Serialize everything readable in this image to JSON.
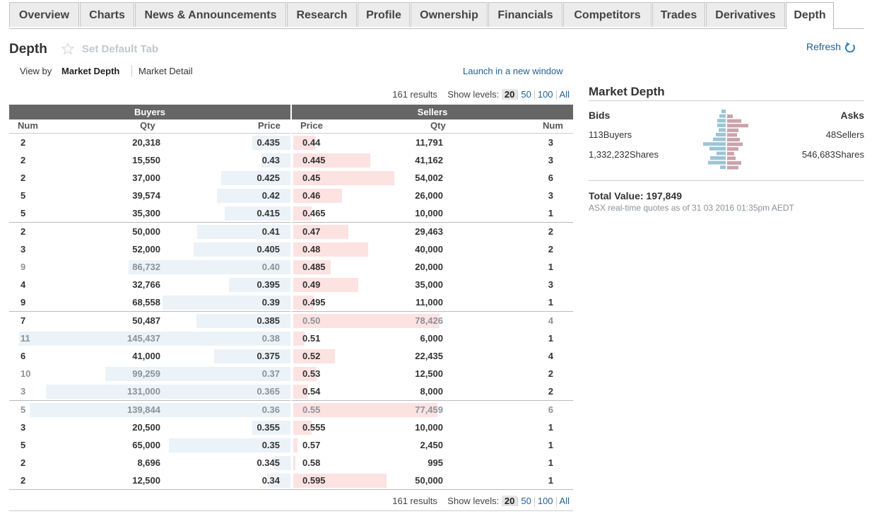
{
  "tabs": [
    "Overview",
    "Charts",
    "News & Announcements",
    "Research",
    "Profile",
    "Ownership",
    "Financials",
    "Competitors",
    "Trades",
    "Derivatives",
    "Depth"
  ],
  "active_tab": "Depth",
  "header": {
    "title": "Depth",
    "set_default": "Set Default Tab",
    "refresh": "Refresh",
    "view_by": "View by",
    "view_market_depth": "Market Depth",
    "view_market_detail": "Market Detail",
    "launch": "Launch in a new window"
  },
  "results": {
    "count_text": "161 results",
    "show_levels": "Show levels:",
    "levels": [
      "20",
      "50",
      "100",
      "All"
    ],
    "selected": "20"
  },
  "table": {
    "buyers_label": "Buyers",
    "sellers_label": "Sellers",
    "columns": {
      "num": "Num",
      "qty": "Qty",
      "price": "Price"
    },
    "max_qty": 150000,
    "rows": [
      {
        "bnum": "2",
        "bqty": "20,318",
        "bprice": "0.435",
        "sprice": "0.44",
        "sqty": "11,791",
        "snum": "3"
      },
      {
        "bnum": "2",
        "bqty": "15,550",
        "bprice": "0.43",
        "sprice": "0.445",
        "sqty": "41,162",
        "snum": "3"
      },
      {
        "bnum": "2",
        "bqty": "37,000",
        "bprice": "0.425",
        "sprice": "0.45",
        "sqty": "54,002",
        "snum": "6"
      },
      {
        "bnum": "5",
        "bqty": "39,574",
        "bprice": "0.42",
        "sprice": "0.46",
        "sqty": "26,000",
        "snum": "3"
      },
      {
        "bnum": "5",
        "bqty": "35,300",
        "bprice": "0.415",
        "sprice": "0.465",
        "sqty": "10,000",
        "snum": "1"
      },
      {
        "bnum": "2",
        "bqty": "50,000",
        "bprice": "0.41",
        "sprice": "0.47",
        "sqty": "29,463",
        "snum": "2"
      },
      {
        "bnum": "3",
        "bqty": "52,000",
        "bprice": "0.405",
        "sprice": "0.48",
        "sqty": "40,000",
        "snum": "2"
      },
      {
        "bnum": "9",
        "bqty": "86,732",
        "bprice": "0.40",
        "sprice": "0.485",
        "sqty": "20,000",
        "snum": "1"
      },
      {
        "bnum": "4",
        "bqty": "32,766",
        "bprice": "0.395",
        "sprice": "0.49",
        "sqty": "35,000",
        "snum": "3"
      },
      {
        "bnum": "9",
        "bqty": "68,558",
        "bprice": "0.39",
        "sprice": "0.495",
        "sqty": "11,000",
        "snum": "1"
      },
      {
        "bnum": "7",
        "bqty": "50,487",
        "bprice": "0.385",
        "sprice": "0.50",
        "sqty": "78,426",
        "snum": "4"
      },
      {
        "bnum": "11",
        "bqty": "145,437",
        "bprice": "0.38",
        "sprice": "0.51",
        "sqty": "6,000",
        "snum": "1"
      },
      {
        "bnum": "6",
        "bqty": "41,000",
        "bprice": "0.375",
        "sprice": "0.52",
        "sqty": "22,435",
        "snum": "4"
      },
      {
        "bnum": "10",
        "bqty": "99,259",
        "bprice": "0.37",
        "sprice": "0.53",
        "sqty": "12,500",
        "snum": "2"
      },
      {
        "bnum": "3",
        "bqty": "131,000",
        "bprice": "0.365",
        "sprice": "0.54",
        "sqty": "8,000",
        "snum": "2"
      },
      {
        "bnum": "5",
        "bqty": "139,844",
        "bprice": "0.36",
        "sprice": "0.55",
        "sqty": "77,459",
        "snum": "6"
      },
      {
        "bnum": "3",
        "bqty": "20,500",
        "bprice": "0.355",
        "sprice": "0.555",
        "sqty": "10,000",
        "snum": "1"
      },
      {
        "bnum": "5",
        "bqty": "65,000",
        "bprice": "0.35",
        "sprice": "0.57",
        "sqty": "2,450",
        "snum": "1"
      },
      {
        "bnum": "2",
        "bqty": "8,696",
        "bprice": "0.345",
        "sprice": "0.58",
        "sqty": "995",
        "snum": "1"
      },
      {
        "bnum": "2",
        "bqty": "12,500",
        "bprice": "0.34",
        "sprice": "0.595",
        "sqty": "50,000",
        "snum": "1"
      }
    ]
  },
  "summary": {
    "title": "Market Depth",
    "bids": "Bids",
    "asks": "Asks",
    "buyers": "113Buyers",
    "sellers": "48Sellers",
    "bid_shares": "1,332,232Shares",
    "ask_shares": "546,683Shares",
    "total_value": "Total Value: 197,849",
    "quote_note": "ASX real-time quotes as of 31 03 2016 01:35pm AEDT"
  },
  "colors": {
    "link": "#1f5f95",
    "header_bar": "#666666",
    "buyer_bar": "#ebf2f8",
    "seller_bar": "#fde2e2",
    "mini_bid": "#9cc4d6",
    "mini_ask": "#c9a3ab"
  }
}
